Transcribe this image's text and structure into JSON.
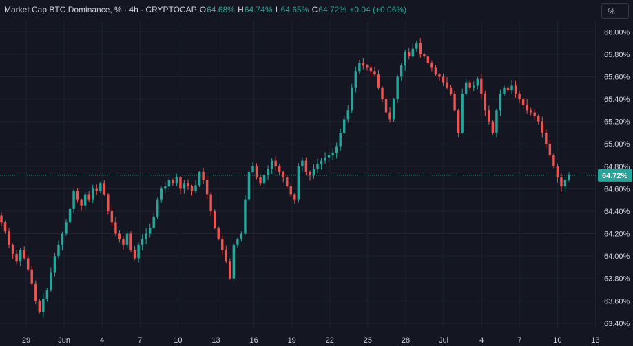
{
  "legend": {
    "title": "Market Cap BTC Dominance, % · 4h · CRYPTOCAP",
    "o_label": "O",
    "o_value": "64.68%",
    "h_label": "H",
    "h_value": "64.74%",
    "l_label": "L",
    "l_value": "64.65%",
    "c_label": "C",
    "c_value": "64.72%",
    "change": "+0.04 (+0.06%)"
  },
  "scale_button": "%",
  "colors": {
    "background": "#141722",
    "up": "#26a69a",
    "down": "#ef5350",
    "grid": "#1f2330",
    "axis_text": "#d1d4dc",
    "last_price": "#26a69a"
  },
  "last_price_label": "64.72%",
  "chart_data": {
    "type": "candlestick",
    "interval": "4h",
    "ylim": [
      63.35,
      66.1
    ],
    "y_ticks": [
      "63.40%",
      "63.60%",
      "63.80%",
      "64.00%",
      "64.20%",
      "64.40%",
      "64.60%",
      "64.80%",
      "65.00%",
      "65.20%",
      "65.40%",
      "65.60%",
      "65.80%",
      "66.00%"
    ],
    "x_ticks": [
      "29",
      "Jun",
      "4",
      "7",
      "10",
      "13",
      "16",
      "19",
      "22",
      "25",
      "28",
      "Jul",
      "4",
      "7",
      "10",
      "13"
    ],
    "grid": true,
    "last_price": 64.72,
    "closes": [
      64.3,
      64.22,
      64.1,
      64.02,
      63.95,
      64.05,
      63.98,
      63.88,
      63.75,
      63.6,
      63.5,
      63.62,
      63.7,
      63.85,
      64.0,
      64.1,
      64.2,
      64.3,
      64.42,
      64.58,
      64.5,
      64.45,
      64.55,
      64.5,
      64.6,
      64.58,
      64.65,
      64.55,
      64.4,
      64.3,
      64.2,
      64.15,
      64.1,
      64.2,
      64.05,
      63.98,
      64.1,
      64.15,
      64.2,
      64.25,
      64.35,
      64.5,
      64.6,
      64.62,
      64.68,
      64.65,
      64.7,
      64.6,
      64.65,
      64.62,
      64.58,
      64.63,
      64.75,
      64.68,
      64.55,
      64.4,
      64.25,
      64.15,
      64.05,
      63.95,
      63.8,
      64.1,
      64.15,
      64.2,
      64.5,
      64.75,
      64.8,
      64.7,
      64.65,
      64.72,
      64.78,
      64.85,
      64.8,
      64.75,
      64.7,
      64.62,
      64.55,
      64.5,
      64.8,
      64.85,
      64.75,
      64.72,
      64.78,
      64.82,
      64.85,
      64.88,
      64.9,
      64.92,
      64.98,
      65.1,
      65.22,
      65.3,
      65.5,
      65.65,
      65.72,
      65.7,
      65.68,
      65.65,
      65.62,
      65.5,
      65.4,
      65.28,
      65.22,
      65.4,
      65.6,
      65.7,
      65.82,
      65.78,
      65.85,
      65.9,
      65.8,
      65.78,
      65.72,
      65.68,
      65.62,
      65.6,
      65.55,
      65.5,
      65.45,
      65.3,
      65.1,
      65.45,
      65.55,
      65.5,
      65.52,
      65.58,
      65.45,
      65.3,
      65.2,
      65.1,
      65.3,
      65.45,
      65.5,
      65.48,
      65.52,
      65.45,
      65.4,
      65.35,
      65.3,
      65.28,
      65.25,
      65.2,
      65.1,
      65.0,
      64.9,
      64.8,
      64.7,
      64.62,
      64.68,
      64.72
    ]
  }
}
